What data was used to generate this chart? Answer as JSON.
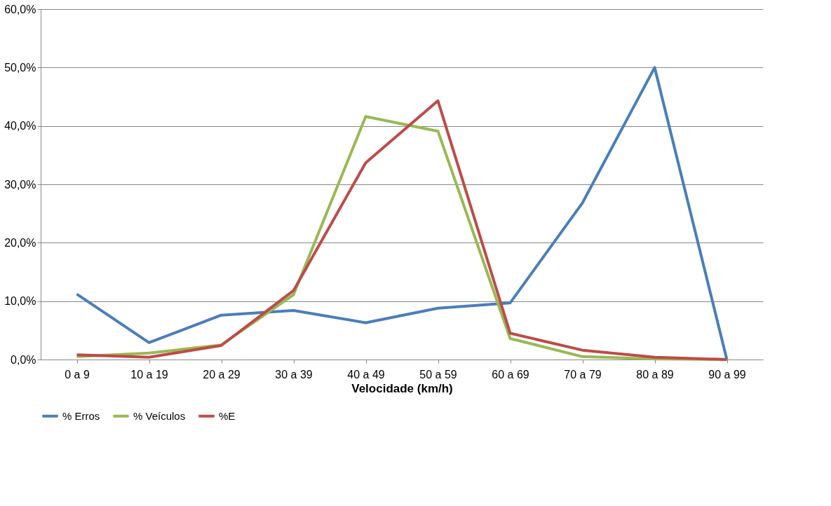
{
  "chart_data": {
    "type": "line",
    "xlabel": "Velocidade (km/h)",
    "categories": [
      "0 a 9",
      "10 a 19",
      "20 a 29",
      "30 a 39",
      "40 a 49",
      "50 a 59",
      "60 a 69",
      "70 a 79",
      "80 a 89",
      "90 a 99"
    ],
    "series": [
      {
        "name": "% Erros",
        "color": "#4a7ebb",
        "values": [
          11.2,
          2.9,
          7.6,
          8.4,
          6.3,
          8.8,
          9.7,
          26.8,
          50.0,
          0
        ]
      },
      {
        "name": "% Veículos",
        "color": "#98b954",
        "values": [
          0.5,
          1.1,
          2.5,
          11.1,
          41.6,
          39.1,
          3.6,
          0.5,
          0.1,
          0
        ]
      },
      {
        "name": "%E",
        "color": "#be4b48",
        "values": [
          0.8,
          0.4,
          2.4,
          11.8,
          33.7,
          44.3,
          4.5,
          1.6,
          0.4,
          0
        ]
      }
    ],
    "ylim": [
      0,
      60
    ],
    "yticks": [
      {
        "value": 0,
        "label": "0,0%"
      },
      {
        "value": 10,
        "label": "10,0%"
      },
      {
        "value": 20,
        "label": "20,0%"
      },
      {
        "value": 30,
        "label": "30,0%"
      },
      {
        "value": 40,
        "label": "40,0%"
      },
      {
        "value": 50,
        "label": "50,0%"
      },
      {
        "value": 60,
        "label": "60,0%"
      }
    ],
    "grid": "y",
    "legend": "bottom",
    "marker": "none",
    "line_style": "solid"
  }
}
